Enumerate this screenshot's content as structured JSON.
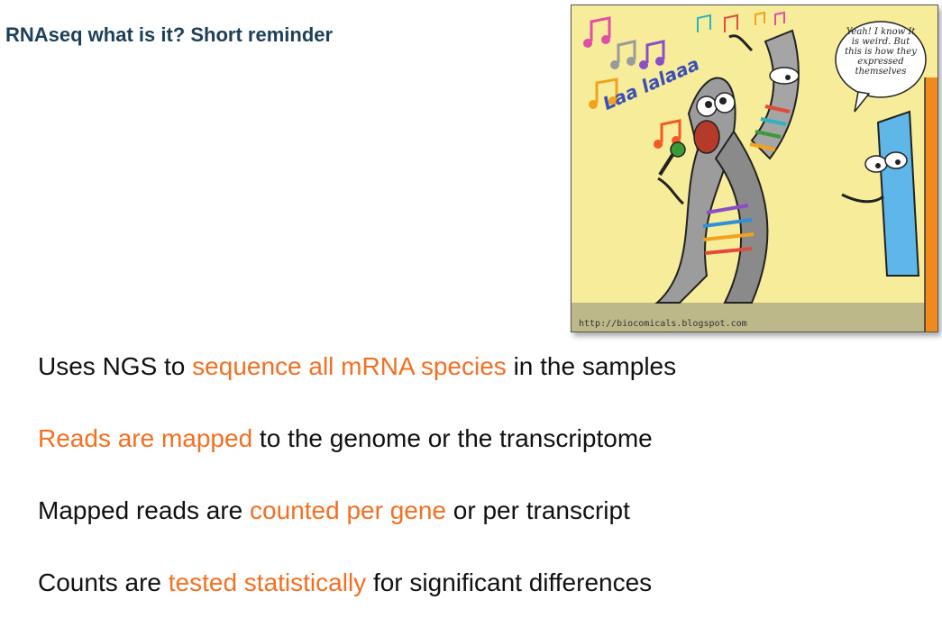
{
  "title": "RNAseq what is it? Short reminder",
  "cartoon": {
    "speech_bubble": "Yeah! I know It is weird. But this is how they expressed themselves",
    "singing_text": "Laa lalaaa",
    "credit": "http://biocomicals.blogspot.com"
  },
  "bullets": [
    {
      "pre": "Uses NGS to ",
      "hl": "sequence all mRNA species",
      "post": " in the samples"
    },
    {
      "pre": "",
      "hl": "Reads are mapped",
      "post": " to the genome or the transcriptome"
    },
    {
      "pre": "Mapped reads are ",
      "hl": "counted per gene",
      "post": " or per transcript"
    },
    {
      "pre": "Counts are ",
      "hl": "tested statistically",
      "post": " for significant differences"
    }
  ],
  "colors": {
    "highlight": "#f36f21",
    "title": "#1e3f5a",
    "cartoon_bg": "#f6ec9a"
  }
}
